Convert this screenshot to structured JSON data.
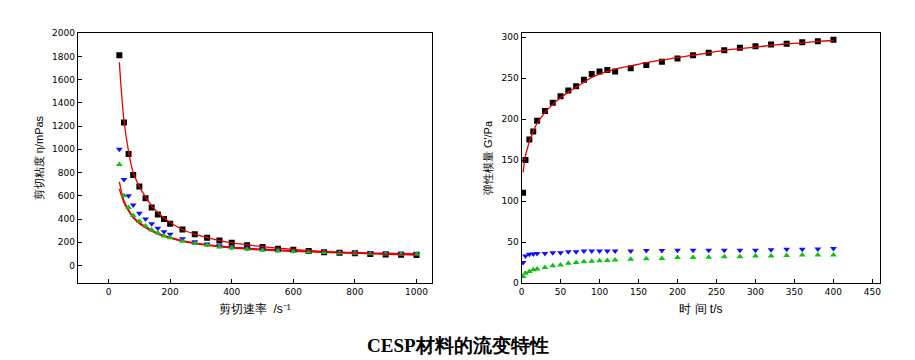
{
  "title": "CESP材料的流变特性",
  "chart_data": [
    {
      "type": "scatter",
      "x_label": "剪切速率  /s⁻¹",
      "y_label": "剪切粘度 η/mPas",
      "x": [
        35,
        50,
        65,
        80,
        100,
        120,
        140,
        160,
        180,
        200,
        240,
        280,
        320,
        360,
        400,
        450,
        500,
        550,
        600,
        650,
        700,
        750,
        800,
        850,
        900,
        950,
        1000
      ],
      "xlim": [
        -100,
        1050
      ],
      "xticks": [
        0,
        200,
        400,
        600,
        800,
        1000
      ],
      "ylim": [
        -150,
        2000
      ],
      "yticks": [
        0,
        200,
        400,
        600,
        800,
        1000,
        1200,
        1400,
        1600,
        1800,
        2000
      ],
      "grid": false,
      "series": [
        {
          "type": "line",
          "color": "#e00000",
          "marker": "none",
          "line_style": "solid",
          "values": [
            660,
            540,
            470,
            410,
            360,
            325,
            295,
            270,
            250,
            235,
            207,
            188,
            173,
            160,
            150,
            141,
            133,
            127,
            121,
            117,
            113,
            109,
            106,
            103,
            101,
            99,
            97
          ]
        },
        {
          "type": "line",
          "color": "#e00000",
          "marker": "none",
          "line_style": "solid",
          "values": [
            720,
            560,
            480,
            420,
            370,
            335,
            305,
            280,
            260,
            243,
            215,
            195,
            180,
            168,
            158,
            149,
            141,
            134,
            128,
            123,
            119,
            115,
            112,
            109,
            106,
            104,
            102
          ]
        },
        {
          "type": "scatter",
          "color": "#000000",
          "marker": "square",
          "values": [
            1810,
            1230,
            960,
            780,
            680,
            580,
            500,
            440,
            400,
            360,
            310,
            270,
            240,
            215,
            195,
            175,
            160,
            145,
            135,
            125,
            115,
            110,
            105,
            100,
            95,
            92,
            90
          ]
        },
        {
          "type": "scatter",
          "color": "#1010ff",
          "marker": "triangle-down",
          "values": [
            1000,
            740,
            600,
            520,
            450,
            400,
            360,
            320,
            290,
            270,
            230,
            205,
            185,
            170,
            158,
            148,
            140,
            133,
            127,
            122,
            118,
            115,
            112,
            110,
            108,
            106,
            105
          ]
        },
        {
          "type": "scatter",
          "color": "#10c010",
          "marker": "triangle-up",
          "values": [
            870,
            600,
            500,
            430,
            380,
            340,
            305,
            280,
            255,
            240,
            210,
            190,
            175,
            160,
            150,
            140,
            132,
            126,
            120,
            116,
            112,
            108,
            105,
            102,
            100,
            98,
            96
          ]
        },
        {
          "type": "line",
          "color": "#e00000",
          "marker": "none",
          "line_style": "solid",
          "values": [
            1750,
            1250,
            980,
            800,
            680,
            590,
            515,
            455,
            410,
            370,
            310,
            270,
            240,
            215,
            195,
            178,
            163,
            150,
            139,
            129,
            121,
            114,
            108,
            102,
            97,
            93,
            89
          ]
        }
      ]
    },
    {
      "type": "scatter",
      "x_label": "时 间 t/s",
      "y_label": "弹性模量 G'/Pa",
      "x": [
        2,
        5,
        10,
        15,
        20,
        30,
        40,
        50,
        60,
        70,
        80,
        90,
        100,
        110,
        120,
        140,
        160,
        180,
        200,
        220,
        240,
        260,
        280,
        300,
        320,
        340,
        360,
        380,
        400
      ],
      "xlim": [
        0,
        460
      ],
      "xticks": [
        0,
        50,
        100,
        150,
        200,
        250,
        300,
        350,
        400,
        450
      ],
      "ylim": [
        0,
        305
      ],
      "yticks": [
        0,
        50,
        100,
        150,
        200,
        250,
        300
      ],
      "grid": false,
      "series": [
        {
          "type": "scatter",
          "color": "#1010ff",
          "marker": "triangle-down",
          "values": [
            25,
            33,
            35,
            35.5,
            36,
            36,
            37,
            37,
            38,
            38,
            39,
            39,
            39,
            39,
            39,
            39,
            39.5,
            39.5,
            40,
            40,
            40,
            40,
            40,
            40,
            40.5,
            41,
            41,
            41.5,
            42
          ]
        },
        {
          "type": "scatter",
          "color": "#10c010",
          "marker": "triangle-up",
          "values": [
            8,
            12,
            14,
            16,
            17,
            19,
            21,
            22,
            24,
            25,
            26,
            26.5,
            27,
            27.5,
            28,
            29,
            29.5,
            30,
            31,
            31,
            31.5,
            32,
            32,
            33,
            33,
            33.5,
            34,
            34,
            34
          ]
        },
        {
          "type": "scatter",
          "color": "#000000",
          "marker": "square",
          "values": [
            110,
            150,
            175,
            185,
            198,
            210,
            220,
            228,
            235,
            240,
            248,
            255,
            258,
            260,
            258,
            262,
            266,
            270,
            274,
            278,
            281,
            284,
            287,
            289,
            291,
            292,
            294,
            295,
            297
          ]
        },
        {
          "type": "line",
          "color": "#e00000",
          "marker": "none",
          "line_style": "solid",
          "values": [
            135,
            155,
            172,
            185,
            195,
            208,
            218,
            226,
            233,
            239,
            245,
            251,
            255,
            258,
            261,
            265,
            269,
            272,
            275,
            278,
            281,
            284,
            286,
            288,
            290,
            292,
            293,
            295,
            296
          ]
        }
      ]
    }
  ]
}
